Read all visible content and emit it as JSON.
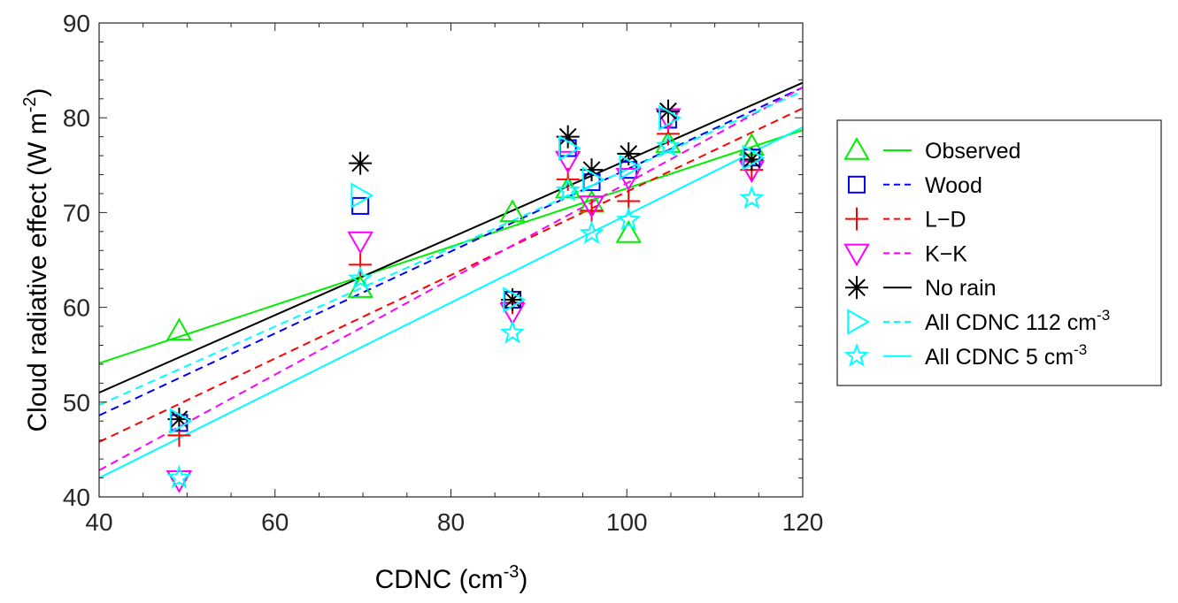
{
  "chart_data": {
    "type": "scatter",
    "xlabel": "CDNC (cm",
    "xlabel_sup": "-3",
    "xlabel_end": ")",
    "ylabel": "Cloud radiative effect (W m",
    "ylabel_sup": "-2",
    "ylabel_end": ")",
    "xlim": [
      40,
      120
    ],
    "ylim": [
      40,
      90
    ],
    "xticks": [
      "40",
      "60",
      "80",
      "100",
      "120"
    ],
    "yticks": [
      "40",
      "50",
      "60",
      "70",
      "80",
      "90"
    ],
    "legend_position": "outside-right",
    "x": [
      49.1,
      69.7,
      87,
      93.3,
      96,
      100.2,
      104.7,
      114.2
    ],
    "series": [
      {
        "name": "Observed",
        "sup": "",
        "marker": "triangle-up",
        "color": "#00ee00",
        "dash": false,
        "values": [
          57.5,
          62,
          70,
          72.5,
          71,
          67.8,
          77.3,
          77
        ],
        "fit": [
          54.1,
          78.7
        ]
      },
      {
        "name": "Wood",
        "sup": "",
        "marker": "square",
        "color": "#0000ff",
        "dash": true,
        "values": [
          47.8,
          70.7,
          60.8,
          76.8,
          73.2,
          74.5,
          79.8,
          75.8
        ],
        "fit": [
          48.6,
          83.2
        ]
      },
      {
        "name": "L−D",
        "sup": "",
        "marker": "plus",
        "color": "#ff0000",
        "dash": true,
        "values": [
          46.5,
          64.5,
          60.5,
          73.5,
          70.2,
          71.2,
          78.3,
          74.5
        ],
        "fit": [
          45.8,
          81
        ]
      },
      {
        "name": "K−K",
        "sup": "",
        "marker": "triangle-down",
        "color": "#ff00ff",
        "dash": true,
        "values": [
          41.8,
          67,
          59.5,
          75.5,
          70.8,
          73.7,
          80,
          74.5
        ],
        "fit": [
          42.8,
          83.2
        ]
      },
      {
        "name": "No rain",
        "sup": "",
        "marker": "asterisk",
        "color": "#000000",
        "dash": false,
        "values": [
          48.2,
          75.2,
          60.8,
          78,
          74.5,
          76.2,
          80.7,
          75.6
        ],
        "fit": [
          51,
          83.7
        ]
      },
      {
        "name": "All CDNC 112 cm",
        "sup": "-3",
        "marker": "triangle-right",
        "color": "#00ffff",
        "dash": true,
        "values": [
          48,
          71.8,
          60.8,
          76.8,
          73.5,
          74.8,
          80,
          75.8
        ],
        "fit": [
          49.7,
          82.8
        ]
      },
      {
        "name": "All CDNC  5 cm",
        "sup": "-3",
        "marker": "star",
        "color": "#00ffff",
        "dash": false,
        "values": [
          42,
          63,
          57.3,
          72.3,
          67.8,
          69.2,
          77,
          71.5
        ],
        "fit": [
          42,
          79
        ]
      }
    ]
  }
}
